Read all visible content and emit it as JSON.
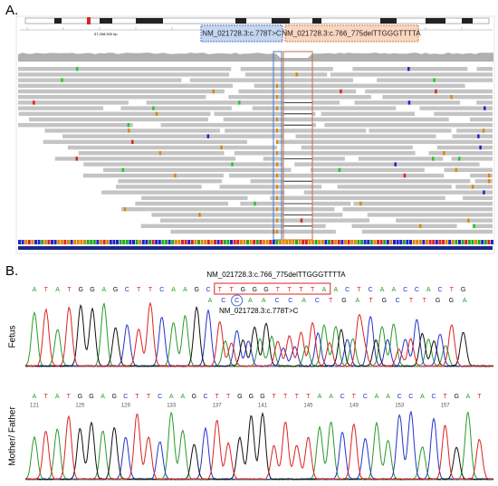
{
  "panel_a": {
    "label": "A.",
    "ruler_position": "57,268,500 bp",
    "variant_substitution": "NM_021728.3:c.778T>C",
    "variant_deletion": "NM_021728.3:c.766_775delTTGGGTTTTA"
  },
  "panel_b": {
    "label": "B.",
    "deletion_label": "NM_021728.3:c.766_775delTTGGGTTTTA",
    "substitution_label": "NM_021728.3:c.778T>C",
    "fetus_label": "Fetus",
    "parent_label": "Mother/ Father",
    "fetus_sequence": [
      "A",
      "T",
      "A",
      "T",
      "G",
      "G",
      "A",
      "G",
      "C",
      "T",
      "T",
      "C",
      "A",
      "A",
      "G",
      "C",
      "T",
      "T",
      "G",
      "G",
      "G",
      "T",
      "T",
      "T",
      "T",
      "A",
      "A",
      "C",
      "T",
      "C",
      "A",
      "A",
      "C",
      "C",
      "A",
      "C",
      "T",
      "G"
    ],
    "fetus_second_sequence": [
      "A",
      "C",
      "C",
      "A",
      "A",
      "C",
      "C",
      "A",
      "C",
      "T",
      "G",
      "A",
      "T",
      "G",
      "C",
      "T",
      "T",
      "G",
      "G",
      "A"
    ],
    "parent_sequence": [
      "A",
      "T",
      "A",
      "T",
      "G",
      "G",
      "A",
      "G",
      "C",
      "T",
      "T",
      "C",
      "A",
      "A",
      "G",
      "C",
      "T",
      "T",
      "G",
      "G",
      "G",
      "T",
      "T",
      "T",
      "T",
      "A",
      "A",
      "C",
      "T",
      "C",
      "A",
      "A",
      "C",
      "C",
      "A",
      "C",
      "T",
      "G",
      "A",
      "T"
    ],
    "parent_positions": [
      "121",
      "125",
      "129",
      "133",
      "137",
      "141",
      "145",
      "149",
      "153",
      "157"
    ]
  }
}
